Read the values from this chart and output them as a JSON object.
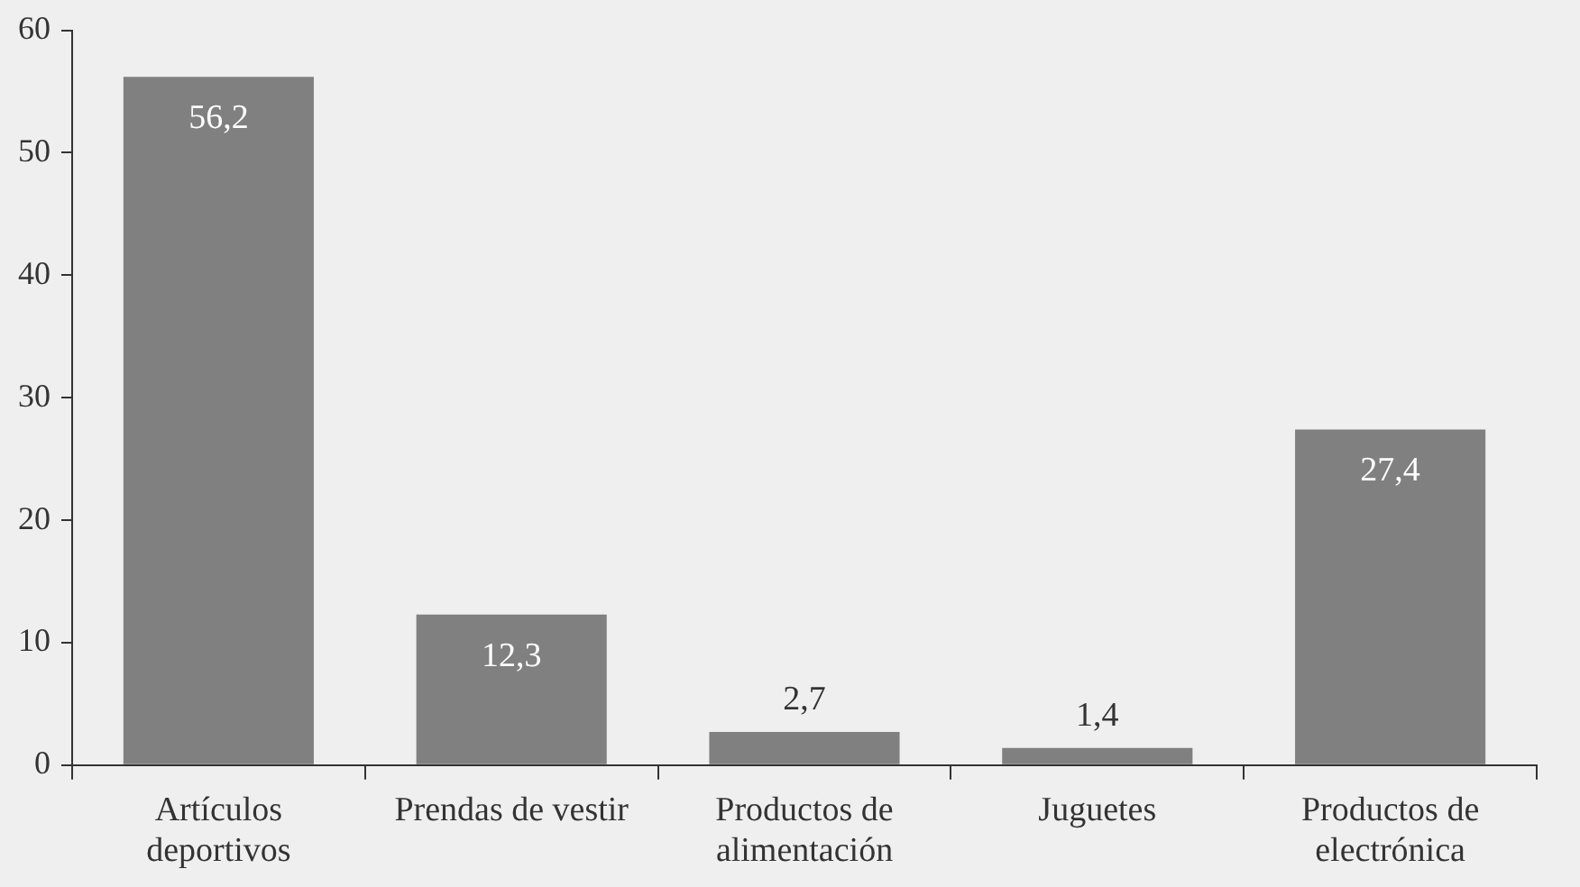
{
  "chart_data": {
    "type": "bar",
    "categories": [
      "Artículos deportivos",
      "Prendas de vestir",
      "Productos de alimentación",
      "Juguetes",
      "Productos de electrónica"
    ],
    "values": [
      56.2,
      12.3,
      2.7,
      1.4,
      27.4
    ],
    "color": "#808080",
    "value_labels": [
      "56,2",
      "12,3",
      "2,7",
      "1,4",
      "27,4"
    ],
    "ylim": [
      0,
      60
    ],
    "yticks": [
      0,
      10,
      20,
      30,
      40,
      50,
      60
    ],
    "grid": false,
    "legend": false
  }
}
